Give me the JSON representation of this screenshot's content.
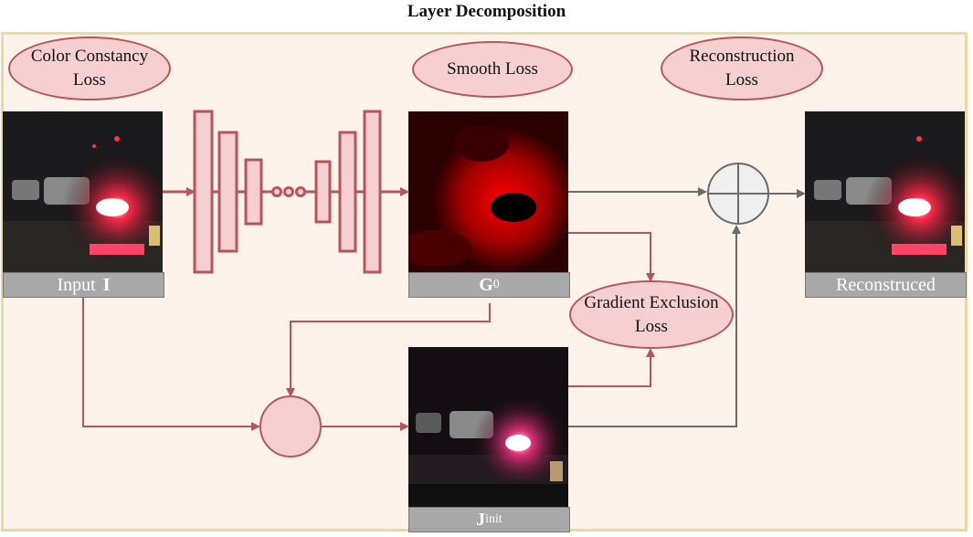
{
  "title": "Layer Decomposition",
  "losses": {
    "color_constancy": "Color Constancy Loss",
    "smooth": "Smooth Loss",
    "reconstruction": "Reconstruction Loss",
    "gradient_exclusion": "Gradient Exclusion Loss"
  },
  "labels": {
    "input": "Input",
    "input_symbol": "I",
    "g0": "G",
    "g0_sub": "0",
    "jinit": "J",
    "jinit_sub": "init",
    "reconstructed": "Reconstruced"
  },
  "icons": [
    "concat-circle-icon",
    "add-circle-icon",
    "encoder-decoder-network"
  ],
  "colors": {
    "arrow": "#b5565b",
    "gray_arrow": "#6b6b6b",
    "loss_fill": "#f6cfd0",
    "panel_fill": "#fdf3ea",
    "panel_border": "#ecd9a2",
    "label_fill": "#a8a8a8"
  }
}
